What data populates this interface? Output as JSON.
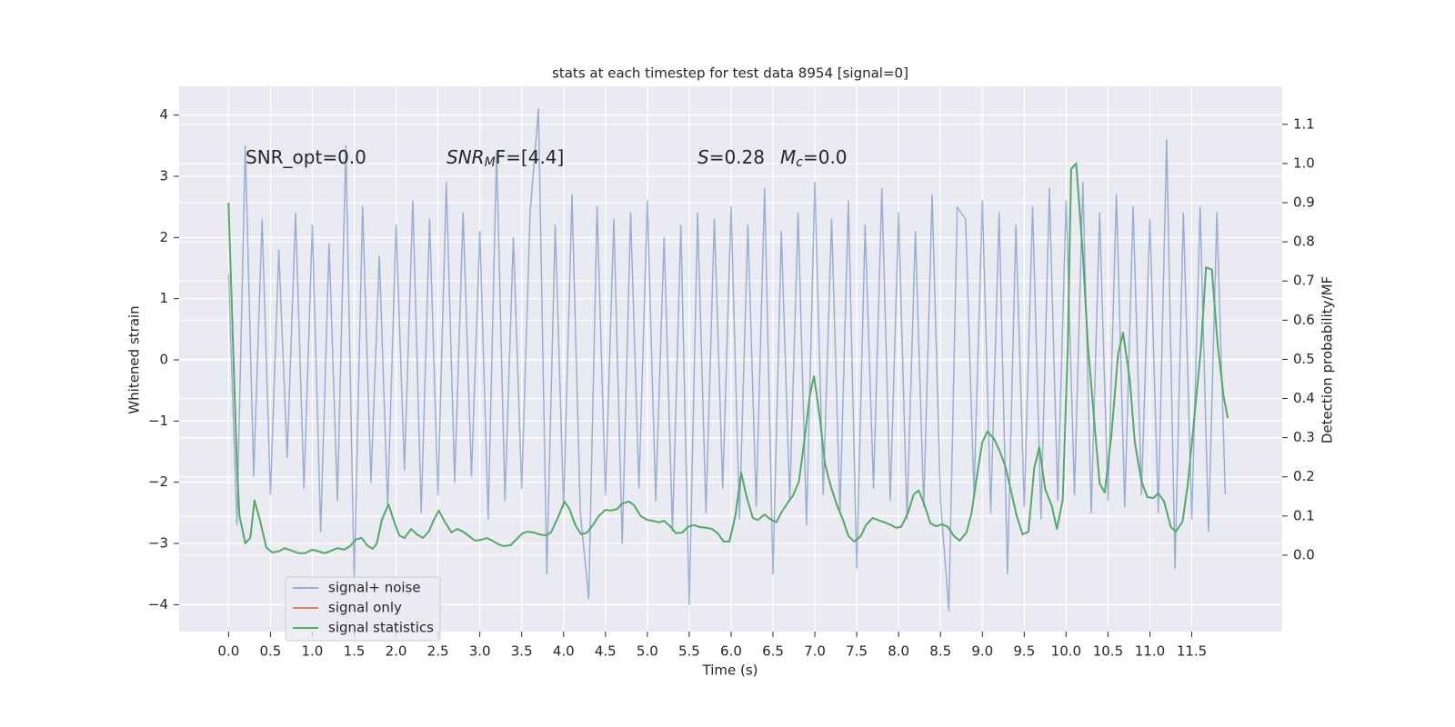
{
  "chart_data": {
    "type": "line",
    "title": "stats at each timestep for test data 8954 [signal=0]",
    "xlabel": "Time (s)",
    "ylabel": "Whitened strain",
    "y2label": "Detection probability/MF",
    "xlim": [
      -0.59,
      12.58
    ],
    "ylim": [
      -4.44,
      4.47
    ],
    "y2lim": [
      -0.195,
      1.197
    ],
    "grid": true,
    "legend": "lower left",
    "xticks": [
      {
        "value": 0,
        "label": "0.0"
      },
      {
        "value": 0.5,
        "label": "0.5"
      },
      {
        "value": 1,
        "label": "1.0"
      },
      {
        "value": 1.5,
        "label": "1.5"
      },
      {
        "value": 2,
        "label": "2.0"
      },
      {
        "value": 2.5,
        "label": "2.5"
      },
      {
        "value": 3,
        "label": "3.0"
      },
      {
        "value": 3.5,
        "label": "3.5"
      },
      {
        "value": 4,
        "label": "4.0"
      },
      {
        "value": 4.5,
        "label": "4.5"
      },
      {
        "value": 5,
        "label": "5.0"
      },
      {
        "value": 5.5,
        "label": "5.5"
      },
      {
        "value": 6,
        "label": "6.0"
      },
      {
        "value": 6.5,
        "label": "6.5"
      },
      {
        "value": 7,
        "label": "7.0"
      },
      {
        "value": 7.5,
        "label": "7.5"
      },
      {
        "value": 8,
        "label": "8.0"
      },
      {
        "value": 8.5,
        "label": "8.5"
      },
      {
        "value": 9,
        "label": "9.0"
      },
      {
        "value": 9.5,
        "label": "9.5"
      },
      {
        "value": 10,
        "label": "10.0"
      },
      {
        "value": 10.5,
        "label": "10.5"
      },
      {
        "value": 11,
        "label": "11.0"
      },
      {
        "value": 11.5,
        "label": "11.5"
      }
    ],
    "yticks": [
      {
        "value": -4,
        "label": "−4"
      },
      {
        "value": -3,
        "label": "−3"
      },
      {
        "value": -2,
        "label": "−2"
      },
      {
        "value": -1,
        "label": "−1"
      },
      0,
      1,
      2,
      3,
      4
    ],
    "y2ticks": [
      {
        "value": 0,
        "label": "0.0"
      },
      {
        "value": 0.1,
        "label": "0.1"
      },
      {
        "value": 0.2,
        "label": "0.2"
      },
      {
        "value": 0.3,
        "label": "0.3"
      },
      {
        "value": 0.4,
        "label": "0.4"
      },
      {
        "value": 0.5,
        "label": "0.5"
      },
      {
        "value": 0.6,
        "label": "0.6"
      },
      {
        "value": 0.7,
        "label": "0.7"
      },
      {
        "value": 0.8,
        "label": "0.8"
      },
      {
        "value": 0.9,
        "label": "0.9"
      },
      {
        "value": 1,
        "label": "1.0"
      },
      {
        "value": 1.1,
        "label": "1.1"
      }
    ],
    "annotations": [
      [
        {
          "text": "SNR_opt=0.0",
          "style": "normal"
        }
      ],
      [
        {
          "text": "SNR",
          "style": "italic"
        },
        {
          "text": "M",
          "style": "sub"
        },
        {
          "text": "F=[4.4]",
          "style": "normal"
        }
      ],
      [
        {
          "text": "S",
          "style": "italic"
        },
        {
          "text": "=0.28",
          "style": "normal"
        }
      ],
      [
        {
          "text": "M",
          "style": "italic"
        },
        {
          "text": "c",
          "style": "sub"
        },
        {
          "text": "=0.0",
          "style": "normal"
        }
      ]
    ],
    "series": [
      {
        "name": "signal+ noise",
        "color": "#4c72b0",
        "opacity": 0.5,
        "x": [
          0,
          0.1,
          0.2,
          0.3,
          0.4,
          0.5,
          0.6,
          0.7,
          0.8,
          0.9,
          1,
          1.1,
          1.2,
          1.3,
          1.4,
          1.5,
          1.6,
          1.7,
          1.8,
          1.9,
          2,
          2.1,
          2.2,
          2.3,
          2.4,
          2.5,
          2.6,
          2.7,
          2.8,
          2.9,
          3,
          3.1,
          3.2,
          3.3,
          3.4,
          3.5,
          3.6,
          3.7,
          3.8,
          3.9,
          4,
          4.1,
          4.2,
          4.3,
          4.4,
          4.5,
          4.6,
          4.7,
          4.8,
          4.9,
          5,
          5.1,
          5.2,
          5.3,
          5.4,
          5.5,
          5.6,
          5.7,
          5.8,
          5.9,
          6,
          6.1,
          6.2,
          6.3,
          6.4,
          6.5,
          6.6,
          6.7,
          6.8,
          6.9,
          7,
          7.1,
          7.2,
          7.3,
          7.4,
          7.5,
          7.6,
          7.7,
          7.8,
          7.9,
          8,
          8.1,
          8.2,
          8.3,
          8.4,
          8.5,
          8.6,
          8.7,
          8.8,
          8.9,
          9,
          9.1,
          9.2,
          9.3,
          9.4,
          9.5,
          9.6,
          9.7,
          9.8,
          9.9,
          10,
          10.1,
          10.2,
          10.3,
          10.4,
          10.5,
          10.6,
          10.7,
          10.8,
          10.9,
          11,
          11.1,
          11.2,
          11.3,
          11.4,
          11.5,
          11.6,
          11.7,
          11.8,
          11.9
        ],
        "values": [
          1.4,
          -2.7,
          3.5,
          -1.9,
          2.3,
          -2.2,
          1.8,
          -1.6,
          2.4,
          -2.1,
          2.2,
          -2.8,
          1.9,
          -2.3,
          3.5,
          -3.6,
          2.5,
          -2.0,
          1.7,
          -2.4,
          2.2,
          -1.8,
          2.6,
          -2.5,
          2.3,
          -2.2,
          2.9,
          -2.0,
          2.4,
          -1.9,
          2.1,
          -2.6,
          3.4,
          -2.3,
          2.0,
          -2.1,
          2.4,
          4.1,
          -3.5,
          2.2,
          -2.4,
          2.7,
          -2.5,
          -3.9,
          2.5,
          -2.2,
          2.3,
          -3.0,
          2.4,
          -2.1,
          2.6,
          -2.3,
          2.0,
          -2.8,
          2.2,
          -4.0,
          2.4,
          -2.5,
          2.3,
          -2.1,
          2.5,
          -2.6,
          2.2,
          -2.4,
          2.8,
          -3.5,
          2.1,
          -2.3,
          2.4,
          -2.7,
          2.9,
          -2.2,
          2.3,
          -2.5,
          2.6,
          -3.4,
          2.2,
          -2.1,
          2.8,
          -2.3,
          2.4,
          -2.6,
          2.1,
          -2.4,
          2.7,
          -2.3,
          -4.1,
          2.5,
          2.3,
          -2.2,
          2.6,
          -2.5,
          2.4,
          -3.5,
          2.2,
          -2.4,
          2.5,
          -2.6,
          2.8,
          -2.3,
          2.6,
          -2.2,
          2.9,
          -2.5,
          2.4,
          -2.3,
          2.7,
          -2.4,
          2.5,
          -2.2,
          2.3,
          -2.5,
          3.6,
          -3.4,
          2.4,
          -2.6,
          2.5,
          -2.8,
          2.4,
          -2.2
        ]
      },
      {
        "name": "signal only",
        "color": "#dd8452",
        "x": [],
        "values": []
      },
      {
        "name": "signal statistics",
        "color": "#55a868",
        "axis": "y2",
        "x": [
          0,
          0.02,
          0.1,
          0.13,
          0.2,
          0.26,
          0.31,
          0.38,
          0.45,
          0.52,
          0.6,
          0.67,
          0.75,
          0.84,
          0.91,
          1,
          1.07,
          1.15,
          1.23,
          1.3,
          1.38,
          1.45,
          1.52,
          1.59,
          1.65,
          1.72,
          1.77,
          1.83,
          1.91,
          1.98,
          2.04,
          2.1,
          2.18,
          2.25,
          2.32,
          2.39,
          2.45,
          2.51,
          2.58,
          2.66,
          2.73,
          2.8,
          2.87,
          2.94,
          3.01,
          3.08,
          3.15,
          3.22,
          3.29,
          3.37,
          3.43,
          3.51,
          3.57,
          3.65,
          3.71,
          3.79,
          3.85,
          3.93,
          4.01,
          4.07,
          4.14,
          4.21,
          4.28,
          4.35,
          4.42,
          4.5,
          4.56,
          4.64,
          4.7,
          4.78,
          4.84,
          4.92,
          5,
          5.06,
          5.14,
          5.2,
          5.28,
          5.34,
          5.42,
          5.48,
          5.56,
          5.62,
          5.7,
          5.77,
          5.84,
          5.91,
          5.98,
          6.05,
          6.12,
          6.18,
          6.26,
          6.32,
          6.4,
          6.46,
          6.54,
          6.6,
          6.68,
          6.74,
          6.81,
          6.87,
          6.94,
          6.99,
          7.06,
          7.12,
          7.19,
          7.26,
          7.34,
          7.4,
          7.47,
          7.55,
          7.61,
          7.69,
          7.75,
          7.83,
          7.89,
          7.97,
          8.03,
          8.11,
          8.18,
          8.24,
          8.31,
          8.38,
          8.45,
          8.52,
          8.59,
          8.66,
          8.73,
          8.81,
          8.87,
          8.95,
          9,
          9.06,
          9.14,
          9.2,
          9.27,
          9.33,
          9.41,
          9.48,
          9.55,
          9.62,
          9.68,
          9.75,
          9.83,
          9.89,
          9.96,
          10.02,
          10.06,
          10.12,
          10.2,
          10.26,
          10.34,
          10.4,
          10.46,
          10.54,
          10.62,
          10.68,
          10.76,
          10.82,
          10.9,
          10.97,
          11.04,
          11.1,
          11.17,
          11.25,
          11.31,
          11.39,
          11.45,
          11.53,
          11.61,
          11.67,
          11.74,
          11.81,
          11.88,
          11.93
        ],
        "values": [
          0.9,
          0.76,
          0.23,
          0.1,
          0.03,
          0.045,
          0.14,
          0.085,
          0.02,
          0.007,
          0.01,
          0.018,
          0.012,
          0.005,
          0.005,
          0.014,
          0.01,
          0.005,
          0.012,
          0.018,
          0.014,
          0.023,
          0.04,
          0.044,
          0.026,
          0.016,
          0.03,
          0.09,
          0.13,
          0.083,
          0.05,
          0.044,
          0.067,
          0.053,
          0.044,
          0.06,
          0.09,
          0.114,
          0.086,
          0.058,
          0.067,
          0.06,
          0.049,
          0.037,
          0.039,
          0.044,
          0.037,
          0.028,
          0.023,
          0.026,
          0.039,
          0.056,
          0.06,
          0.058,
          0.053,
          0.051,
          0.058,
          0.095,
          0.137,
          0.118,
          0.077,
          0.053,
          0.058,
          0.077,
          0.1,
          0.116,
          0.114,
          0.118,
          0.132,
          0.137,
          0.128,
          0.1,
          0.09,
          0.088,
          0.084,
          0.088,
          0.072,
          0.056,
          0.058,
          0.072,
          0.077,
          0.072,
          0.07,
          0.067,
          0.056,
          0.035,
          0.035,
          0.1,
          0.211,
          0.153,
          0.095,
          0.09,
          0.104,
          0.093,
          0.084,
          0.109,
          0.135,
          0.153,
          0.188,
          0.285,
          0.408,
          0.457,
          0.35,
          0.234,
          0.176,
          0.13,
          0.088,
          0.049,
          0.035,
          0.049,
          0.077,
          0.095,
          0.09,
          0.084,
          0.079,
          0.07,
          0.072,
          0.107,
          0.155,
          0.165,
          0.128,
          0.081,
          0.074,
          0.079,
          0.072,
          0.049,
          0.037,
          0.058,
          0.107,
          0.223,
          0.288,
          0.316,
          0.297,
          0.269,
          0.23,
          0.176,
          0.1,
          0.053,
          0.06,
          0.223,
          0.276,
          0.169,
          0.125,
          0.067,
          0.142,
          0.536,
          0.986,
          1.0,
          0.768,
          0.536,
          0.332,
          0.183,
          0.16,
          0.304,
          0.513,
          0.568,
          0.448,
          0.288,
          0.188,
          0.148,
          0.146,
          0.158,
          0.137,
          0.072,
          0.06,
          0.086,
          0.176,
          0.35,
          0.529,
          0.735,
          0.729,
          0.536,
          0.406,
          0.35
        ]
      }
    ]
  }
}
